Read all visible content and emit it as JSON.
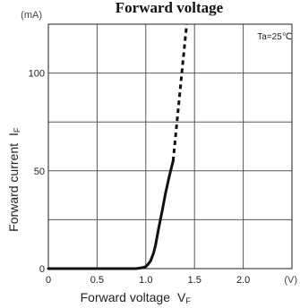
{
  "chart_data": {
    "type": "line",
    "title": "Forward voltage",
    "xlabel": "Forward voltage",
    "xlabel_symbol": "VF",
    "ylabel": "Forward current",
    "ylabel_symbol": "IF",
    "x_unit": "(V)",
    "y_unit": "(mA)",
    "annotation": "Ta=25℃",
    "xlim": [
      0,
      2.5
    ],
    "ylim": [
      0,
      125
    ],
    "x_ticks": [
      "0",
      "0.5",
      "1.0",
      "1.5",
      "2.0"
    ],
    "y_ticks": [
      "0",
      "50",
      "100"
    ],
    "grid": true,
    "series": [
      {
        "style": "solid",
        "x": [
          0,
          0.5,
          0.9,
          0.95,
          1.0,
          1.02,
          1.05,
          1.08,
          1.1,
          1.13,
          1.17,
          1.2,
          1.24,
          1.28
        ],
        "y": [
          0,
          0,
          0,
          0.3,
          1,
          2,
          4,
          8,
          12,
          20,
          30,
          38,
          47,
          55
        ]
      },
      {
        "style": "dashed",
        "x": [
          1.28,
          1.33,
          1.38,
          1.42
        ],
        "y": [
          55,
          80,
          105,
          125
        ]
      }
    ]
  }
}
